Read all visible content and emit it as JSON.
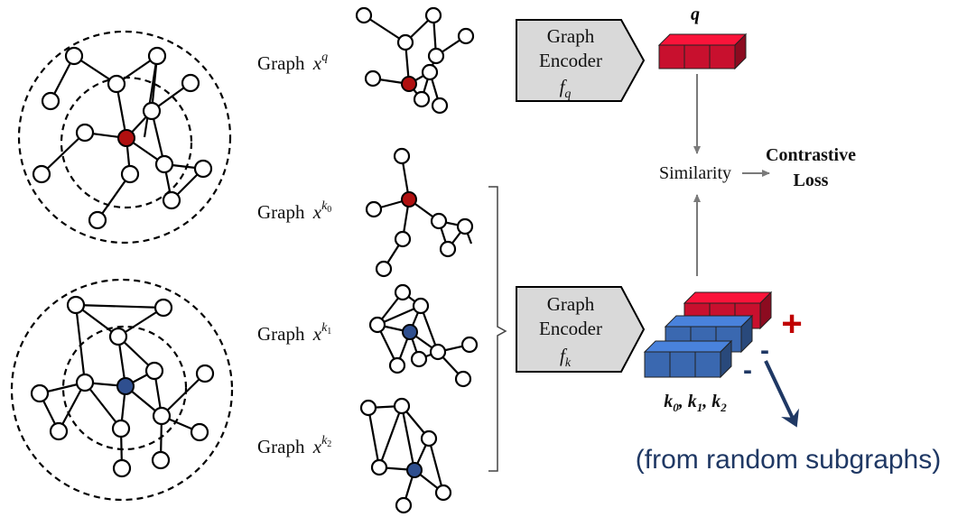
{
  "colors": {
    "anchor_red": "#b01010",
    "anchor_blue": "#2f4f8f",
    "cube_red": "#c8102e",
    "cube_blue": "#3a68b0",
    "encoder_fill": "#d9d9d9",
    "plus_red": "#c00000",
    "navy": "#1f3864"
  },
  "graph_labels": {
    "q": {
      "prefix": "Graph",
      "var": "x",
      "sup": "q",
      "sub": ""
    },
    "k0": {
      "prefix": "Graph",
      "var": "x",
      "sup": "k",
      "sub": "0"
    },
    "k1": {
      "prefix": "Graph",
      "var": "x",
      "sup": "k",
      "sub": "1"
    },
    "k2": {
      "prefix": "Graph",
      "var": "x",
      "sup": "k",
      "sub": "2"
    }
  },
  "encoder_q": {
    "line1": "Graph",
    "line2": "Encoder",
    "fn": "f",
    "sub": "q"
  },
  "encoder_k": {
    "line1": "Graph",
    "line2": "Encoder",
    "fn": "f",
    "sub": "k"
  },
  "query_label": "q",
  "keys_label": {
    "k": "k",
    "s0": "0",
    "s1": "1",
    "s2": "2",
    "sep": ", "
  },
  "similarity": "Similarity",
  "contrastive": {
    "line1": "Contrastive",
    "line2": "Loss"
  },
  "plus": "+",
  "minus": "-",
  "note": "(from random subgraphs)"
}
